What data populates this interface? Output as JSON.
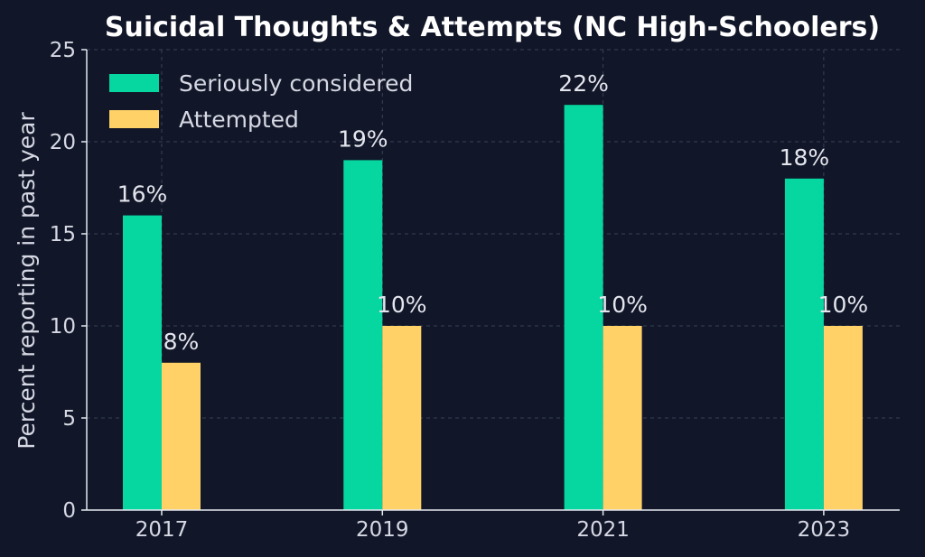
{
  "chart_data": {
    "type": "bar",
    "title": "Suicidal Thoughts & Attempts (NC High-Schoolers)",
    "xlabel": "",
    "ylabel": "Percent reporting in past year",
    "categories": [
      "2017",
      "2019",
      "2021",
      "2023"
    ],
    "series": [
      {
        "name": "Seriously considered",
        "values": [
          16,
          19,
          22,
          18
        ],
        "color": "#06d6a0",
        "labels": [
          "16%",
          "19%",
          "22%",
          "18%"
        ]
      },
      {
        "name": "Attempted",
        "values": [
          8,
          10,
          10,
          10
        ],
        "color": "#ffd166",
        "labels": [
          "8%",
          "10%",
          "10%",
          "10%"
        ]
      }
    ],
    "ylim": [
      0,
      25
    ],
    "yticks": [
      "0",
      "5",
      "10",
      "15",
      "20",
      "25"
    ],
    "grid": true,
    "legend": "top-left"
  }
}
